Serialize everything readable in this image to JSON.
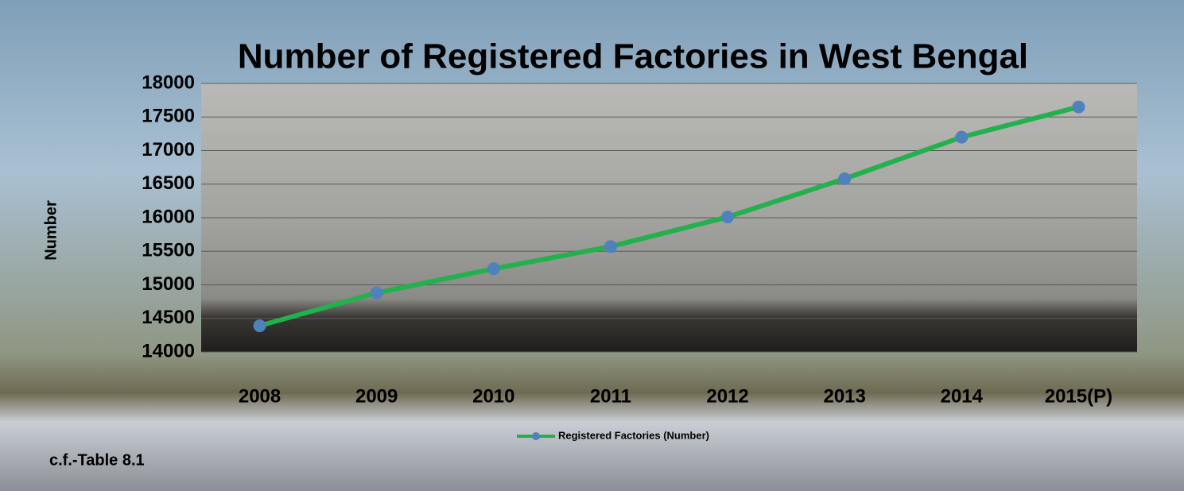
{
  "chart_data": {
    "type": "line",
    "title": "Number of Registered Factories in West Bengal",
    "y_axis_label": "Number",
    "annotation": "c.f.-Table 8.1",
    "categories": [
      "2008",
      "2009",
      "2010",
      "2011",
      "2012",
      "2013",
      "2014",
      "2015(P)"
    ],
    "series": [
      {
        "name": "Registered Factories (Number)",
        "color": "#22b14c",
        "marker_color": "#4f81bd",
        "values": [
          14390,
          14880,
          15240,
          15570,
          16010,
          16580,
          17200,
          17650
        ]
      }
    ],
    "ylim": [
      14000,
      18000
    ],
    "yticks": [
      14000,
      14500,
      15000,
      15500,
      16000,
      16500,
      17000,
      17500,
      18000
    ],
    "grid": true,
    "legend": "bottom"
  }
}
